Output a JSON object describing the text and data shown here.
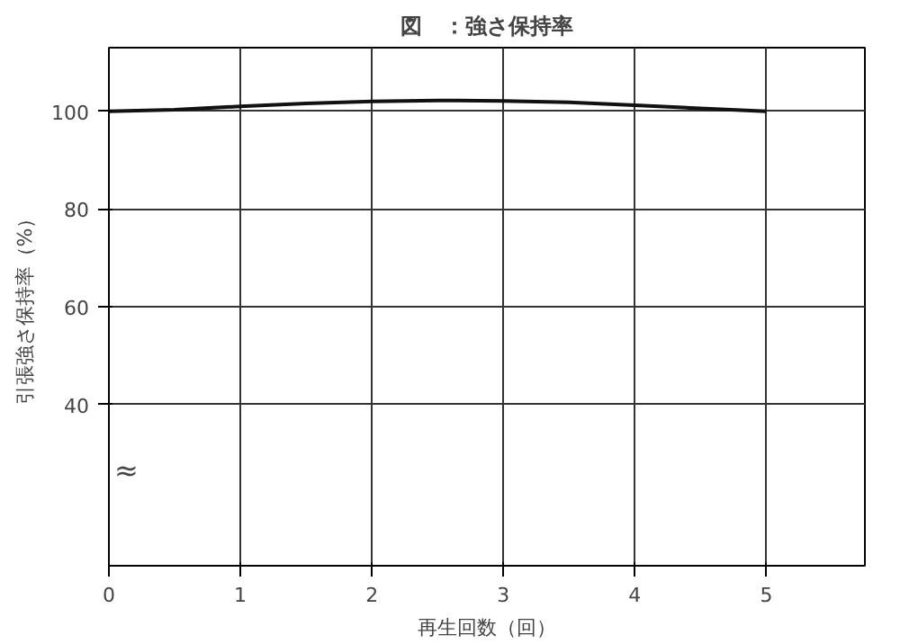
{
  "chart_data": {
    "type": "line",
    "title": "図　：強さ保持率",
    "xlabel": "再生回数（回）",
    "ylabel": "引張強さ保持率（%）",
    "x": [
      0,
      0.5,
      1,
      1.5,
      2,
      2.5,
      3,
      3.5,
      4,
      4.5,
      5
    ],
    "series": [
      {
        "color": "#111111",
        "values": [
          100,
          100.3,
          101.0,
          101.6,
          102.0,
          102.2,
          102.1,
          101.8,
          101.2,
          100.6,
          100
        ]
      }
    ],
    "xlim": [
      0,
      5.75
    ],
    "xticks": [
      0,
      1,
      2,
      3,
      4,
      5
    ],
    "ylim": [
      7,
      113
    ],
    "yticks": [
      40,
      60,
      80,
      100
    ],
    "grid": true,
    "marker": "none",
    "line_style": "solid",
    "annotations": [
      "≈"
    ]
  }
}
